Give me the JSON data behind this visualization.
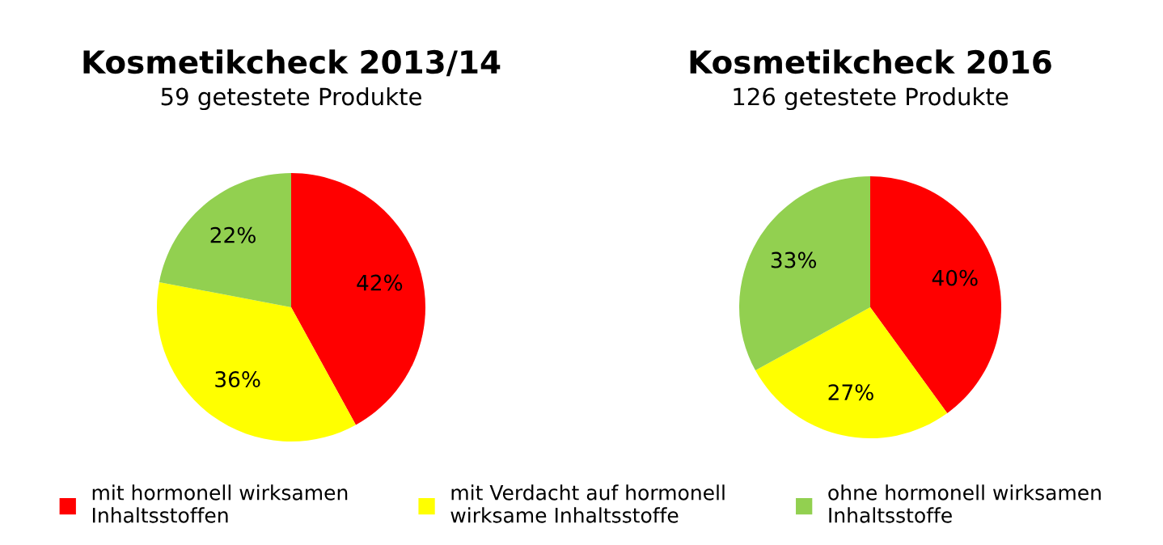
{
  "chart_data": [
    {
      "type": "pie",
      "title": "Kosmetikcheck 2013/14",
      "subtitle": "59 getestete Produkte",
      "categories": [
        "mit hormonell wirksamen\nInhaltsstoffen",
        "mit Verdacht auf hormonell\nwirksame Inhaltsstoffe",
        "ohne hormonell wirksamen\nInhaltsstoffe"
      ],
      "values": [
        42,
        36,
        22
      ],
      "colors": [
        "#ff0000",
        "#ffff00",
        "#92d050"
      ],
      "value_labels": [
        "42%",
        "36%",
        "22%"
      ],
      "legend": "bottom"
    },
    {
      "type": "pie",
      "title": "Kosmetikcheck 2016",
      "subtitle": "126 getestete Produkte",
      "categories": [
        null,
        null,
        null
      ],
      "values": [
        40,
        27,
        33
      ],
      "colors": [
        "#ff0000",
        "#ffff00",
        "#92d050"
      ],
      "value_labels": [
        "40%",
        "27%",
        "33%"
      ]
    }
  ]
}
